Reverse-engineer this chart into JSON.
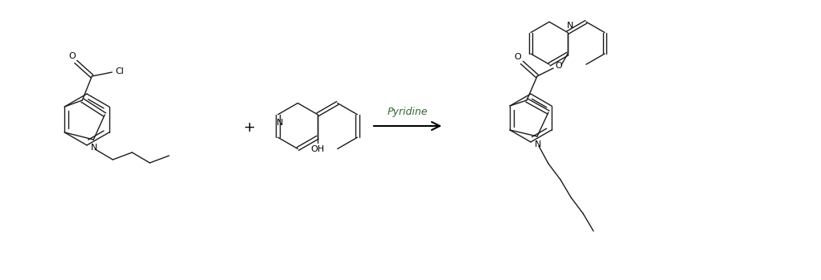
{
  "background_color": "#ffffff",
  "line_color": "#1a1a1a",
  "text_color": "#000000",
  "arrow_label": "Pyridine",
  "plus_sign": "+",
  "label_N": "N",
  "label_O": "O",
  "label_Cl": "Cl",
  "label_OH": "OH",
  "figsize": [
    10.21,
    3.49
  ],
  "dpi": 100
}
